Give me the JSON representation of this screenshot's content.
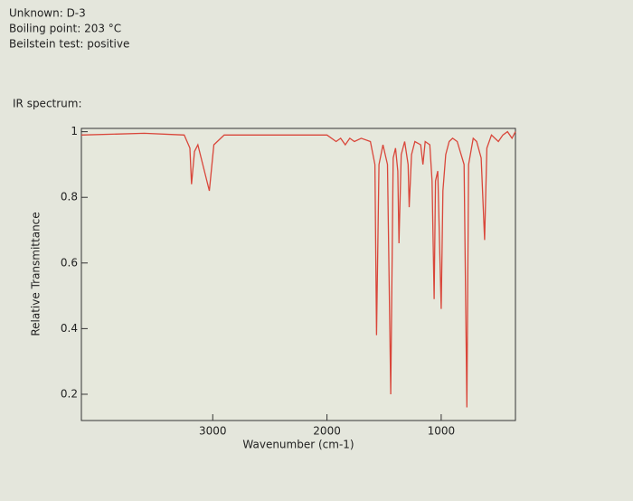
{
  "header": {
    "unknown": "Unknown: D-3",
    "boiling_point": "Boiling point: 203 °C",
    "beilstein": "Beilstein test: positive"
  },
  "chart_data": {
    "type": "line",
    "title": "IR spectrum:",
    "x_label": "Wavenumber (cm-1)",
    "y_label": "Relative Transmittance",
    "color": "#d9463a",
    "x": [
      4150,
      3600,
      3250,
      3200,
      3186,
      3160,
      3130,
      3030,
      2990,
      2900,
      2200,
      2000,
      1920,
      1880,
      1840,
      1800,
      1760,
      1700,
      1620,
      1580,
      1566,
      1545,
      1510,
      1470,
      1442,
      1420,
      1400,
      1380,
      1370,
      1350,
      1320,
      1290,
      1280,
      1260,
      1230,
      1180,
      1160,
      1140,
      1100,
      1080,
      1062,
      1050,
      1030,
      1000,
      985,
      960,
      930,
      900,
      860,
      800,
      775,
      760,
      720,
      690,
      650,
      620,
      600,
      560,
      500,
      460,
      420,
      380,
      350
    ],
    "values": [
      0.99,
      0.995,
      0.99,
      0.95,
      0.84,
      0.94,
      0.96,
      0.82,
      0.96,
      0.99,
      0.99,
      0.99,
      0.97,
      0.98,
      0.96,
      0.98,
      0.97,
      0.98,
      0.97,
      0.9,
      0.38,
      0.9,
      0.96,
      0.9,
      0.2,
      0.92,
      0.95,
      0.88,
      0.66,
      0.93,
      0.97,
      0.9,
      0.77,
      0.93,
      0.97,
      0.96,
      0.9,
      0.97,
      0.96,
      0.85,
      0.49,
      0.85,
      0.88,
      0.46,
      0.82,
      0.93,
      0.97,
      0.98,
      0.97,
      0.9,
      0.16,
      0.9,
      0.98,
      0.97,
      0.92,
      0.67,
      0.95,
      0.99,
      0.97,
      0.99,
      1.0,
      0.98,
      1.0
    ],
    "xlim": [
      4150,
      350
    ],
    "ylim": [
      0.12,
      1.01
    ],
    "xticks": [
      3000,
      2000,
      1000
    ],
    "yticks": [
      1,
      0.8,
      0.6,
      0.4,
      0.2
    ]
  }
}
